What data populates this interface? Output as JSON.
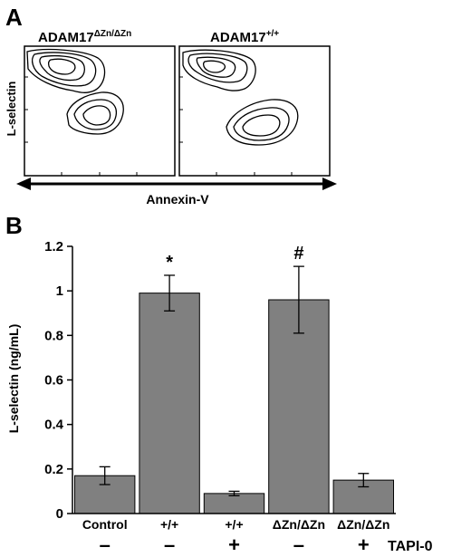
{
  "panel_a": {
    "label": "A",
    "left_title_base": "ADAM17",
    "left_title_sup": "ΔZn/ΔZn",
    "right_title_base": "ADAM17",
    "right_title_sup": "+/+",
    "ylabel": "L-selectin",
    "xlabel": "Annexin-V"
  },
  "panel_b": {
    "label": "B",
    "row_label": "TAPI-0",
    "genotypes": [
      "Control",
      "+/+",
      "+/+",
      "ΔZn/ΔZn",
      "ΔZn/ΔZn"
    ],
    "tapi_signs": [
      "–",
      "–",
      "+",
      "–",
      "+"
    ],
    "annotations": [
      "",
      "*",
      "",
      "#",
      ""
    ]
  },
  "colors": {
    "bar_fill": "#808080",
    "axis": "#000000"
  },
  "chart_data": {
    "type": "bar",
    "categories": [
      "Control",
      "+/+",
      "+/+",
      "ΔZn/ΔZn",
      "ΔZn/ΔZn"
    ],
    "values": [
      0.17,
      0.99,
      0.09,
      0.96,
      0.15
    ],
    "errors": [
      0.04,
      0.08,
      0.01,
      0.15,
      0.03
    ],
    "ylabel": "L-selectin (ng/mL)",
    "ylim": [
      0,
      1.2
    ],
    "yticks": [
      "0",
      "0.2",
      "0.4",
      "0.6",
      "0.8",
      "1",
      "1.2"
    ],
    "ytick_values": [
      0,
      0.2,
      0.4,
      0.6,
      0.8,
      1,
      1.2
    ],
    "grid": false,
    "legend": "none"
  }
}
